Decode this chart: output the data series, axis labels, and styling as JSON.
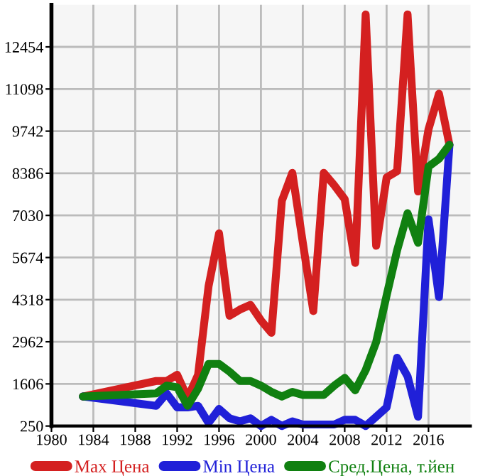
{
  "chart_data": {
    "type": "line",
    "x": [
      1983,
      1990,
      1991,
      1992,
      1993,
      1994,
      1995,
      1996,
      1997,
      1998,
      1999,
      2000,
      2001,
      2002,
      2003,
      2004,
      2005,
      2006,
      2007,
      2008,
      2009,
      2010,
      2011,
      2012,
      2013,
      2014,
      2015,
      2016,
      2017,
      2018
    ],
    "series": [
      {
        "name": "Max Цена",
        "color": "#d42020",
        "values": [
          1200,
          1700,
          1700,
          1900,
          1150,
          1900,
          4750,
          6450,
          3800,
          4000,
          4150,
          3650,
          3250,
          7500,
          8400,
          6150,
          3950,
          8400,
          8000,
          7550,
          5500,
          13500,
          6050,
          8250,
          8450,
          13500,
          7800,
          9800,
          10950,
          9300
        ]
      },
      {
        "name": "Min Цена",
        "color": "#2020d8",
        "values": [
          1200,
          900,
          1300,
          850,
          850,
          900,
          350,
          800,
          500,
          400,
          500,
          250,
          450,
          250,
          400,
          300,
          300,
          300,
          300,
          450,
          450,
          250,
          550,
          850,
          2450,
          1850,
          550,
          6900,
          4400,
          9300
        ]
      },
      {
        "name": "Сред.Цена, т.йен",
        "color": "#108010",
        "values": [
          1200,
          1300,
          1550,
          1500,
          900,
          1450,
          2250,
          2250,
          2000,
          1700,
          1700,
          1550,
          1350,
          1200,
          1350,
          1250,
          1250,
          1250,
          1550,
          1800,
          1400,
          2050,
          2950,
          4450,
          5900,
          7100,
          6150,
          8600,
          8850,
          9300
        ]
      }
    ],
    "xlim": [
      1980,
      2020
    ],
    "xticks": [
      1980,
      1984,
      1988,
      1992,
      1996,
      2000,
      2004,
      2008,
      2012,
      2016
    ],
    "ylim": [
      250,
      13810
    ],
    "yticks": [
      250,
      1606,
      2962,
      4318,
      5674,
      7030,
      8386,
      9742,
      11098,
      12454
    ],
    "grid": true,
    "legend": "bottom",
    "marker": "none",
    "line_style": "solid"
  }
}
